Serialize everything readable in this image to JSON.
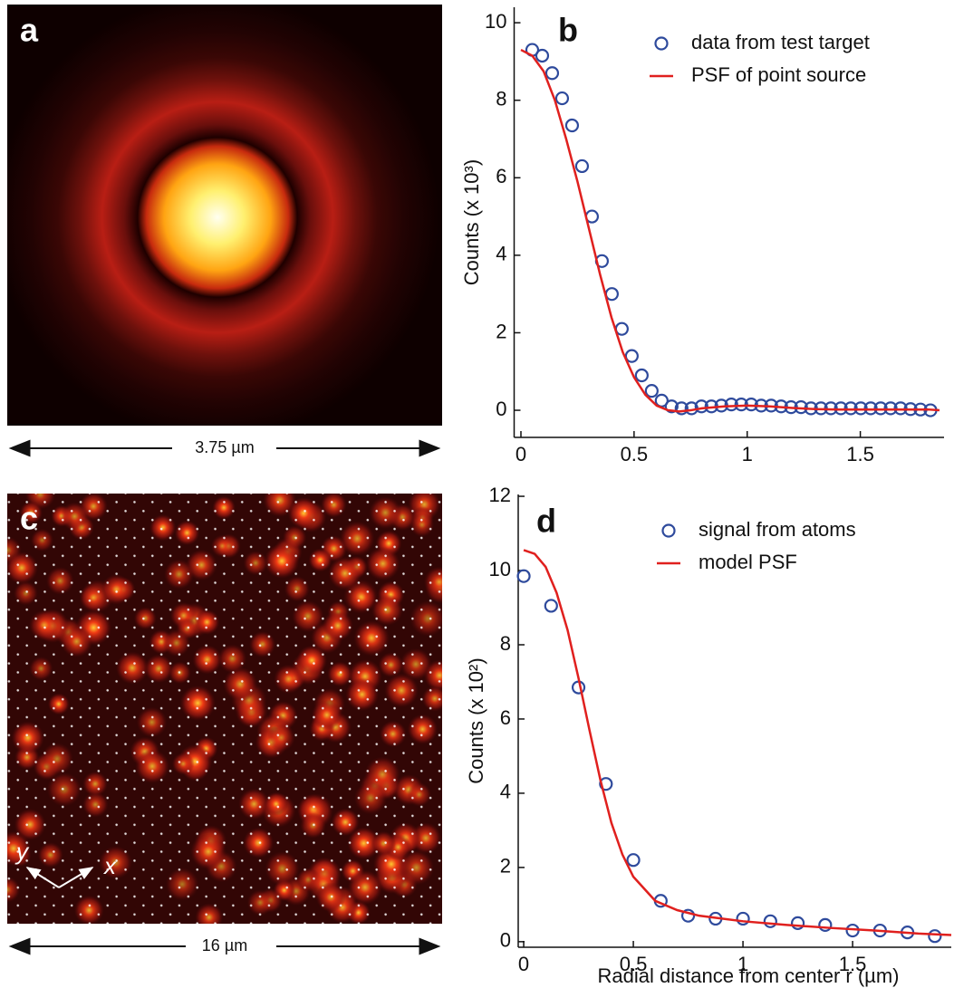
{
  "images": [
    {
      "label": "a",
      "scale_bar": "3.75 µm"
    },
    {
      "label": "c",
      "scale_bar": "16 µm",
      "axes": [
        "x",
        "y"
      ]
    }
  ],
  "chart_data": [
    {
      "type": "scatter",
      "panel": "b",
      "ylabel": "Counts (x 10³)",
      "xlim": [
        -0.03,
        1.87
      ],
      "ylim": [
        -0.7,
        10.4
      ],
      "xticks": [
        0,
        0.5,
        1,
        1.5
      ],
      "yticks": [
        0,
        2,
        4,
        6,
        8,
        10
      ],
      "legend": "upper right",
      "series": [
        {
          "name": "data from test target",
          "mode": "markers",
          "color": "#2e4a9c",
          "x": [
            0.05,
            0.094,
            0.138,
            0.182,
            0.226,
            0.27,
            0.314,
            0.358,
            0.402,
            0.446,
            0.49,
            0.534,
            0.578,
            0.622,
            0.666,
            0.71,
            0.754,
            0.798,
            0.842,
            0.886,
            0.93,
            0.974,
            1.018,
            1.062,
            1.106,
            1.15,
            1.194,
            1.238,
            1.282,
            1.326,
            1.37,
            1.414,
            1.458,
            1.502,
            1.546,
            1.59,
            1.634,
            1.678,
            1.722,
            1.766,
            1.81
          ],
          "values": [
            9.3,
            9.15,
            8.7,
            8.05,
            7.35,
            6.3,
            5.0,
            3.85,
            3.0,
            2.1,
            1.4,
            0.9,
            0.5,
            0.25,
            0.1,
            0.05,
            0.05,
            0.1,
            0.1,
            0.12,
            0.15,
            0.15,
            0.15,
            0.12,
            0.12,
            0.1,
            0.08,
            0.08,
            0.05,
            0.05,
            0.05,
            0.05,
            0.05,
            0.05,
            0.05,
            0.05,
            0.05,
            0.05,
            0.03,
            0.02,
            0.0
          ]
        },
        {
          "name": "PSF of point source",
          "mode": "lines",
          "color": "#e0201e",
          "x": [
            0,
            0.05,
            0.1,
            0.15,
            0.2,
            0.25,
            0.3,
            0.35,
            0.4,
            0.45,
            0.5,
            0.55,
            0.6,
            0.65,
            0.7,
            0.75,
            0.8,
            0.9,
            1.0,
            1.1,
            1.2,
            1.3,
            1.4,
            1.5,
            1.6,
            1.7,
            1.8,
            1.85
          ],
          "values": [
            9.3,
            9.15,
            8.75,
            8.0,
            7.0,
            5.9,
            4.7,
            3.5,
            2.4,
            1.5,
            0.85,
            0.4,
            0.12,
            0.0,
            -0.03,
            0.0,
            0.05,
            0.1,
            0.12,
            0.1,
            0.06,
            0.03,
            0.02,
            0.02,
            0.02,
            0.02,
            0.02,
            0.0
          ]
        }
      ]
    },
    {
      "type": "scatter",
      "panel": "d",
      "ylabel": "Counts (x 10²)",
      "xlabel": "Radial distance from center r (µm)",
      "xlim": [
        -0.025,
        1.95
      ],
      "ylim": [
        -0.15,
        12.05
      ],
      "xticks": [
        0,
        0.5,
        1,
        1.5
      ],
      "yticks": [
        0,
        2,
        4,
        6,
        8,
        10,
        12
      ],
      "legend": "upper right",
      "series": [
        {
          "name": "signal from atoms",
          "mode": "markers",
          "color": "#2e4a9c",
          "x": [
            0,
            0.125,
            0.25,
            0.375,
            0.5,
            0.625,
            0.75,
            0.875,
            1.0,
            1.125,
            1.25,
            1.375,
            1.5,
            1.625,
            1.75,
            1.875
          ],
          "values": [
            9.85,
            9.05,
            6.85,
            4.25,
            2.2,
            1.1,
            0.7,
            0.62,
            0.62,
            0.55,
            0.5,
            0.45,
            0.3,
            0.3,
            0.25,
            0.15
          ]
        },
        {
          "name": "model PSF",
          "mode": "lines",
          "color": "#e0201e",
          "x": [
            0,
            0.05,
            0.1,
            0.15,
            0.2,
            0.25,
            0.3,
            0.35,
            0.4,
            0.45,
            0.5,
            0.6,
            0.7,
            0.8,
            1.0,
            1.2,
            1.4,
            1.6,
            1.8,
            1.95
          ],
          "values": [
            10.55,
            10.45,
            10.1,
            9.4,
            8.4,
            7.1,
            5.7,
            4.35,
            3.2,
            2.35,
            1.75,
            1.1,
            0.85,
            0.7,
            0.55,
            0.45,
            0.37,
            0.3,
            0.22,
            0.18
          ]
        }
      ]
    }
  ]
}
